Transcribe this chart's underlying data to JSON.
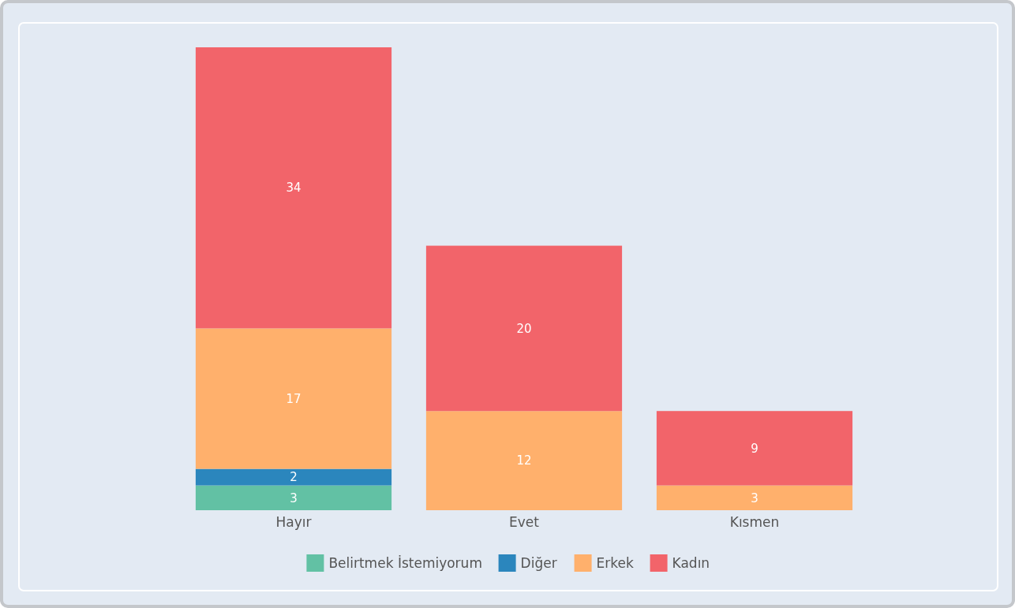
{
  "chart_data": {
    "type": "bar",
    "stacked": true,
    "data_labels": true,
    "legend": "bottom",
    "categories": [
      "Hayır",
      "Evet",
      "Kısmen"
    ],
    "series": [
      {
        "name": "Belirtmek İstemiyorum",
        "color": "#62c1a4",
        "values": [
          3,
          null,
          null
        ]
      },
      {
        "name": "Diğer",
        "color": "#2b86bd",
        "values": [
          2,
          null,
          null
        ]
      },
      {
        "name": "Erkek",
        "color": "#ffb06c",
        "values": [
          17,
          12,
          3
        ]
      },
      {
        "name": "Kadın",
        "color": "#f2646a",
        "values": [
          34,
          20,
          9
        ]
      }
    ]
  }
}
